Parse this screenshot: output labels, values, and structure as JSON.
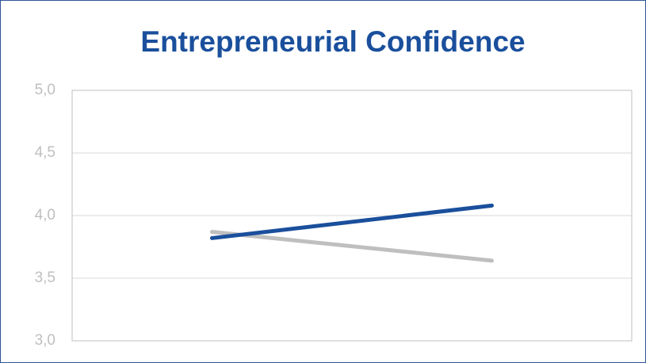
{
  "chart_data": {
    "type": "line",
    "title": "Entrepreneurial Confidence",
    "categories": [
      null,
      null
    ],
    "series": [
      {
        "color": "#bfbfbf",
        "values": [
          3.87,
          3.64
        ]
      },
      {
        "color": "#1a4f9c",
        "values": [
          3.82,
          4.08
        ]
      }
    ],
    "ylim": [
      3.0,
      5.0
    ],
    "yticks": [
      {
        "value": 3.0,
        "label": "3,0"
      },
      {
        "value": 3.5,
        "label": "3,5"
      },
      {
        "value": 4.0,
        "label": "4,0"
      },
      {
        "value": 4.5,
        "label": "4,5"
      },
      {
        "value": 5.0,
        "label": "5,0"
      }
    ],
    "grid": true
  }
}
